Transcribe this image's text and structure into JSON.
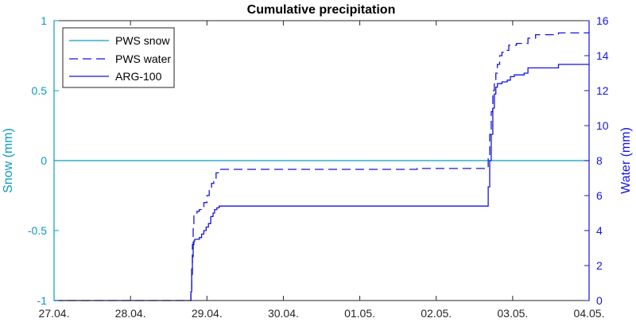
{
  "colors": {
    "snow": "#0a9bc4",
    "water": "#1515e0",
    "arg": "#1515e0",
    "left_axis": "#0a9bc4",
    "right_axis": "#1515e0",
    "frame": "#262626"
  },
  "chart_data": {
    "type": "line",
    "title": "Cumulative precipitation",
    "ylabel_left": "Snow (mm)",
    "ylabel_right": "Water (mm)",
    "xlim": [
      0,
      7
    ],
    "ylim_left": [
      -1,
      1
    ],
    "ylim_right": [
      0,
      16
    ],
    "x_ticks": [
      0,
      1,
      2,
      3,
      4,
      5,
      6,
      7
    ],
    "x_tick_labels": [
      "27.04.",
      "28.04.",
      "29.04.",
      "30.04.",
      "01.05.",
      "02.05.",
      "03.05.",
      "04.05."
    ],
    "y_left_ticks": [
      -1,
      -0.5,
      0,
      0.5,
      1
    ],
    "y_left_tick_labels": [
      "-1",
      "-0.5",
      "0",
      "0.5",
      "1"
    ],
    "y_right_ticks": [
      0,
      2,
      4,
      6,
      8,
      10,
      12,
      14,
      16
    ],
    "y_right_tick_labels": [
      "0",
      "2",
      "4",
      "6",
      "8",
      "10",
      "12",
      "14",
      "16"
    ],
    "legend": {
      "position": "top-left",
      "entries": [
        "PWS snow",
        "PWS water",
        "ARG-100"
      ]
    },
    "grid": false,
    "series": [
      {
        "name": "PWS snow",
        "axis": "left",
        "style": "solid",
        "x": [
          0,
          7
        ],
        "y": [
          0,
          0
        ]
      },
      {
        "name": "PWS water",
        "axis": "right",
        "style": "dashed",
        "x": [
          0,
          1.78,
          1.79,
          1.8,
          1.81,
          1.82,
          1.83,
          1.84,
          1.85,
          1.87,
          1.9,
          1.93,
          1.96,
          2.0,
          2.03,
          2.06,
          2.09,
          2.12,
          2.15,
          2.18,
          2.22,
          4.5,
          4.75,
          5.67,
          5.68,
          5.7,
          5.72,
          5.74,
          5.76,
          5.78,
          5.8,
          5.83,
          5.86,
          5.9,
          5.95,
          6.0,
          6.05,
          6.2,
          6.3,
          6.6,
          7.0
        ],
        "y": [
          0,
          0,
          0.5,
          1.8,
          3.2,
          4.4,
          4.9,
          4.9,
          5.0,
          5.1,
          5.2,
          5.3,
          5.6,
          6.0,
          6.3,
          6.7,
          7.0,
          7.3,
          7.4,
          7.5,
          7.5,
          7.5,
          7.55,
          7.6,
          8.3,
          9.5,
          10.8,
          12.0,
          12.6,
          13.0,
          13.5,
          14.0,
          14.2,
          14.3,
          14.6,
          14.6,
          14.7,
          15.0,
          15.2,
          15.3,
          15.3
        ]
      },
      {
        "name": "ARG-100",
        "axis": "right",
        "style": "solid",
        "x": [
          0,
          1.78,
          1.79,
          1.8,
          1.81,
          1.82,
          1.83,
          1.84,
          1.87,
          1.9,
          1.93,
          1.96,
          1.99,
          2.02,
          2.05,
          2.08,
          2.1,
          2.13,
          2.16,
          2.2,
          5.67,
          5.68,
          5.7,
          5.72,
          5.74,
          5.76,
          5.78,
          5.8,
          5.83,
          5.86,
          5.9,
          5.93,
          5.97,
          6.02,
          6.08,
          6.15,
          6.2,
          6.6,
          7.0
        ],
        "y": [
          0,
          0,
          0.5,
          1.5,
          2.5,
          3.2,
          3.4,
          3.5,
          3.5,
          3.6,
          3.8,
          4.0,
          4.2,
          4.4,
          4.8,
          5.0,
          5.2,
          5.3,
          5.4,
          5.4,
          5.4,
          6.5,
          8.0,
          9.5,
          11.0,
          11.8,
          12.2,
          12.4,
          12.4,
          12.5,
          12.5,
          12.6,
          12.8,
          12.9,
          12.9,
          13.0,
          13.3,
          13.5,
          13.5
        ]
      }
    ]
  }
}
